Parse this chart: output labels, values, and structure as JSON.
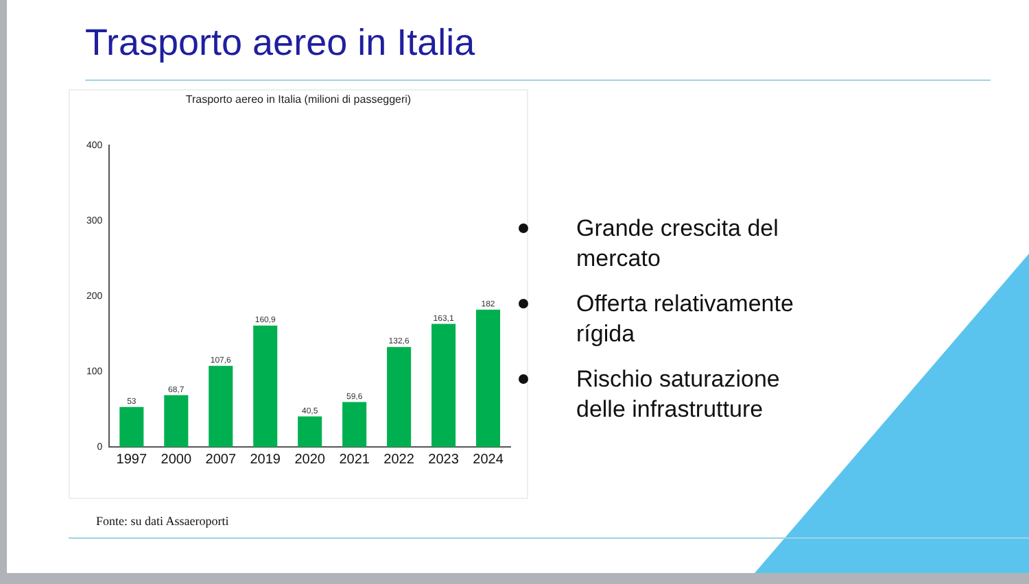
{
  "chart_data": {
    "type": "bar",
    "title": "Trasporto aereo in Italia",
    "subtitle": "Trasporto aereo in Italia (milioni di passeggeri)",
    "categories": [
      "1997",
      "2000",
      "2007",
      "2019",
      "2020",
      "2021",
      "2022",
      "2023",
      "2024"
    ],
    "values": [
      53,
      68.7,
      107.6,
      160.9,
      40.5,
      59.6,
      132.6,
      163.1,
      182
    ],
    "value_labels": [
      "53",
      "68,7",
      "107,6",
      "160,9",
      "40,5",
      "59,6",
      "132,6",
      "163,1",
      "182"
    ],
    "color": "#00b050",
    "ylim": [
      0,
      400
    ],
    "yticks": [
      0,
      100,
      200,
      300,
      400
    ],
    "grid": false,
    "legend": false,
    "annotations": [
      "Grande crescita del mercato",
      "Offerta relativamente rígida",
      "Rischio saturazione delle infrastrutture",
      "Fonte: su dati Assaeroporti"
    ]
  }
}
